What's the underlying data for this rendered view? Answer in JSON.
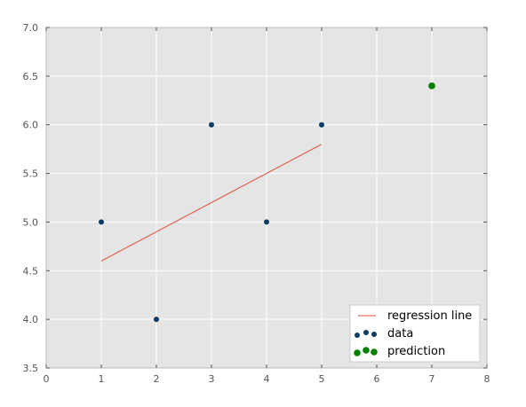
{
  "chart_data": {
    "type": "scatter",
    "title": "",
    "xlabel": "",
    "ylabel": "",
    "xlim": [
      0,
      8
    ],
    "ylim": [
      3.5,
      7.0
    ],
    "x_ticks": [
      "0",
      "1",
      "2",
      "3",
      "4",
      "5",
      "6",
      "7",
      "8"
    ],
    "y_ticks": [
      "3.5",
      "4.0",
      "4.5",
      "5.0",
      "5.5",
      "6.0",
      "6.5",
      "7.0"
    ],
    "grid": true,
    "legend_position": "lower-right",
    "background_color": "#e5e5e5",
    "series": [
      {
        "name": "regression line",
        "kind": "line",
        "color": "#e24a33",
        "points": [
          [
            1,
            4.6
          ],
          [
            5,
            5.8
          ]
        ]
      },
      {
        "name": "data",
        "kind": "scatter",
        "color": "#0b3b62",
        "points": [
          [
            1,
            5.0
          ],
          [
            2,
            4.0
          ],
          [
            3,
            6.0
          ],
          [
            4,
            5.0
          ],
          [
            5,
            6.0
          ]
        ]
      },
      {
        "name": "prediction",
        "kind": "scatter",
        "color": "#008000",
        "points": [
          [
            7,
            6.4
          ]
        ]
      }
    ]
  }
}
